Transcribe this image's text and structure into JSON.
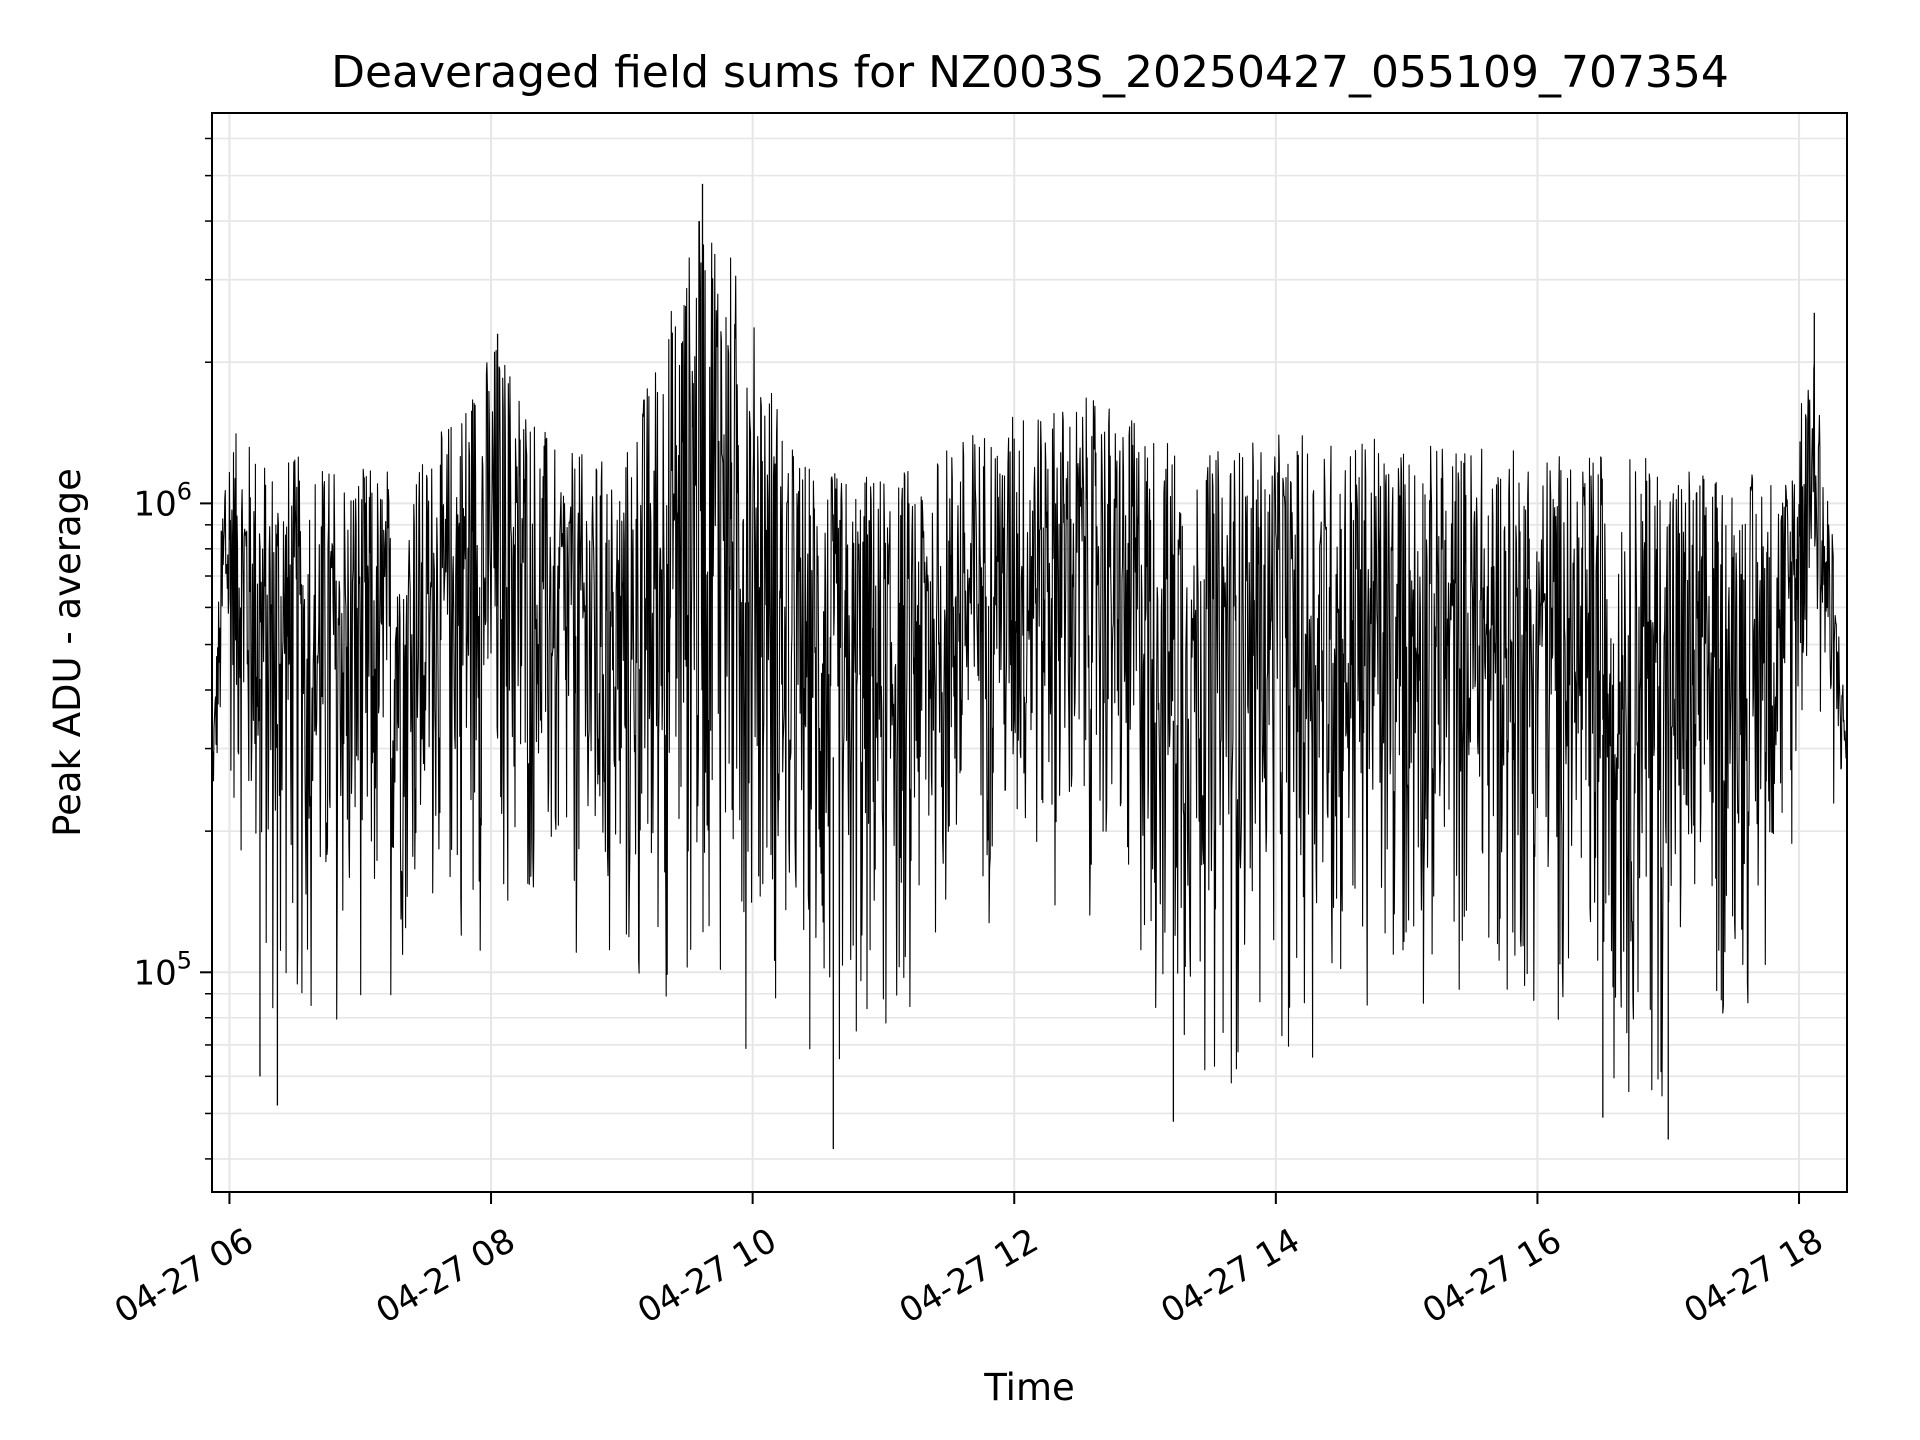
{
  "chart_data": {
    "type": "line",
    "title": "Deaveraged field sums for NZ003S_20250427_055109_707354",
    "xlabel": "Time",
    "ylabel": "Peak ADU - average",
    "yscale": "log",
    "grid": true,
    "legend": "none",
    "line_color": "#000000",
    "grid_color": "#e6e6e6",
    "xlim": [
      "2025-04-27 05:52",
      "2025-04-27 18:22"
    ],
    "ylim": [
      34000,
      6800000
    ],
    "x_ticks": [
      {
        "value": "2025-04-27 06:00",
        "label": "04-27 06"
      },
      {
        "value": "2025-04-27 08:00",
        "label": "04-27 08"
      },
      {
        "value": "2025-04-27 10:00",
        "label": "04-27 10"
      },
      {
        "value": "2025-04-27 12:00",
        "label": "04-27 12"
      },
      {
        "value": "2025-04-27 14:00",
        "label": "04-27 14"
      },
      {
        "value": "2025-04-27 16:00",
        "label": "04-27 16"
      },
      {
        "value": "2025-04-27 18:00",
        "label": "04-27 18"
      }
    ],
    "y_ticks": [
      {
        "value": 100000,
        "base": "10",
        "exp": "5"
      },
      {
        "value": 1000000,
        "base": "10",
        "exp": "6"
      }
    ],
    "series": [
      {
        "envelope": [
          {
            "t": "2025-04-27 05:52",
            "lo": 210000,
            "hi": 280000
          },
          {
            "t": "2025-04-27 05:58",
            "lo": 260000,
            "hi": 1450000
          },
          {
            "t": "2025-04-27 06:20",
            "lo": 55000,
            "hi": 1300000
          },
          {
            "t": "2025-04-27 07:00",
            "lo": 72000,
            "hi": 1200000
          },
          {
            "t": "2025-04-27 07:30",
            "lo": 95000,
            "hi": 1250000
          },
          {
            "t": "2025-04-27 08:03",
            "lo": 100000,
            "hi": 2300000
          },
          {
            "t": "2025-04-27 08:30",
            "lo": 95000,
            "hi": 1300000
          },
          {
            "t": "2025-04-27 09:00",
            "lo": 60000,
            "hi": 1250000
          },
          {
            "t": "2025-04-27 09:40",
            "lo": 70000,
            "hi": 4800000
          },
          {
            "t": "2025-04-27 10:20",
            "lo": 62000,
            "hi": 1300000
          },
          {
            "t": "2025-04-27 10:40",
            "lo": 42000,
            "hi": 1150000
          },
          {
            "t": "2025-04-27 11:00",
            "lo": 55000,
            "hi": 1200000
          },
          {
            "t": "2025-04-27 11:30",
            "lo": 100000,
            "hi": 1350000
          },
          {
            "t": "2025-04-27 12:00",
            "lo": 130000,
            "hi": 1600000
          },
          {
            "t": "2025-04-27 12:40",
            "lo": 120000,
            "hi": 1700000
          },
          {
            "t": "2025-04-27 13:10",
            "lo": 55000,
            "hi": 1400000
          },
          {
            "t": "2025-04-27 13:30",
            "lo": 48000,
            "hi": 1300000
          },
          {
            "t": "2025-04-27 14:00",
            "lo": 58000,
            "hi": 1400000
          },
          {
            "t": "2025-04-27 14:30",
            "lo": 65000,
            "hi": 1400000
          },
          {
            "t": "2025-04-27 15:00",
            "lo": 70000,
            "hi": 1350000
          },
          {
            "t": "2025-04-27 15:30",
            "lo": 75000,
            "hi": 1350000
          },
          {
            "t": "2025-04-27 16:00",
            "lo": 70000,
            "hi": 1300000
          },
          {
            "t": "2025-04-27 16:30",
            "lo": 50000,
            "hi": 1300000
          },
          {
            "t": "2025-04-27 17:00",
            "lo": 45000,
            "hi": 1250000
          },
          {
            "t": "2025-04-27 17:30",
            "lo": 60000,
            "hi": 1150000
          },
          {
            "t": "2025-04-27 17:55",
            "lo": 110000,
            "hi": 1200000
          },
          {
            "t": "2025-04-27 18:06",
            "lo": 450000,
            "hi": 2500000
          },
          {
            "t": "2025-04-27 18:15",
            "lo": 180000,
            "hi": 900000
          },
          {
            "t": "2025-04-27 18:22",
            "lo": 250000,
            "hi": 320000
          }
        ],
        "spikes": [
          {
            "t": "2025-04-27 06:14",
            "v": 60000
          },
          {
            "t": "2025-04-27 06:22",
            "v": 52000
          },
          {
            "t": "2025-04-27 08:03",
            "v": 2300000
          },
          {
            "t": "2025-04-27 09:37",
            "v": 4800000
          },
          {
            "t": "2025-04-27 10:37",
            "v": 42000
          },
          {
            "t": "2025-04-27 13:13",
            "v": 48000
          },
          {
            "t": "2025-04-27 16:30",
            "v": 49000
          },
          {
            "t": "2025-04-27 17:00",
            "v": 44000
          },
          {
            "t": "2025-04-27 18:07",
            "v": 2550000
          }
        ]
      }
    ]
  }
}
